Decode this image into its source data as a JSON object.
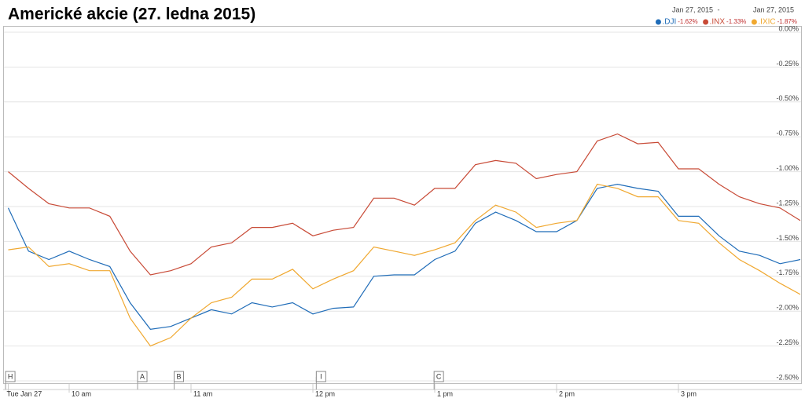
{
  "chart_data": {
    "type": "line",
    "title": "Americké akcie (27. ledna 2015)",
    "date_range": [
      "Jan 27, 2015",
      "Jan 27, 2015"
    ],
    "x": [
      570,
      580,
      590,
      600,
      610,
      620,
      630,
      640,
      650,
      660,
      670,
      680,
      690,
      700,
      710,
      720,
      730,
      740,
      750,
      760,
      770,
      780,
      790,
      800,
      810,
      820,
      830,
      840,
      850,
      860,
      870,
      880,
      890,
      900,
      910,
      920,
      930,
      940,
      950,
      960
    ],
    "xlim": [
      570,
      960
    ],
    "xticks": [
      {
        "value": 570,
        "label": "Tue Jan 27"
      },
      {
        "value": 600,
        "label": "10 am"
      },
      {
        "value": 660,
        "label": "11 am"
      },
      {
        "value": 720,
        "label": "12 pm"
      },
      {
        "value": 780,
        "label": "1 pm"
      },
      {
        "value": 840,
        "label": "2 pm"
      },
      {
        "value": 900,
        "label": "3 pm"
      }
    ],
    "ylim": [
      -2.5,
      0
    ],
    "yticks": [
      {
        "value": 0,
        "label": "0.00%"
      },
      {
        "value": -0.25,
        "label": "-0.25%"
      },
      {
        "value": -0.5,
        "label": "-0.50%"
      },
      {
        "value": -0.75,
        "label": "-0.75%"
      },
      {
        "value": -1,
        "label": "-1.00%"
      },
      {
        "value": -1.25,
        "label": "-1.25%"
      },
      {
        "value": -1.5,
        "label": "-1.50%"
      },
      {
        "value": -1.75,
        "label": "-1.75%"
      },
      {
        "value": -2,
        "label": "-2.00%"
      },
      {
        "value": -2.25,
        "label": "-2.25%"
      },
      {
        "value": -2.5,
        "label": "-2.50%"
      }
    ],
    "grid": true,
    "series": [
      {
        "name": ".DJI",
        "color": "#1f6cb8",
        "change": {
          "value": -1.62,
          "label": "-1.62%"
        },
        "values": [
          -1.26,
          -1.57,
          -1.63,
          -1.57,
          -1.63,
          -1.68,
          -1.94,
          -2.13,
          -2.11,
          -2.05,
          -1.99,
          -2.02,
          -1.94,
          -1.97,
          -1.94,
          -2.02,
          -1.98,
          -1.97,
          -1.75,
          -1.74,
          -1.74,
          -1.63,
          -1.57,
          -1.37,
          -1.29,
          -1.35,
          -1.43,
          -1.43,
          -1.35,
          -1.12,
          -1.09,
          -1.12,
          -1.14,
          -1.32,
          -1.32,
          -1.46,
          -1.57,
          -1.6,
          -1.66,
          -1.63
        ]
      },
      {
        "name": ".INX",
        "color": "#c84a36",
        "change": {
          "value": -1.33,
          "label": "-1.33%"
        },
        "values": [
          -1,
          -1.12,
          -1.23,
          -1.26,
          -1.26,
          -1.32,
          -1.57,
          -1.74,
          -1.71,
          -1.66,
          -1.54,
          -1.51,
          -1.4,
          -1.4,
          -1.37,
          -1.46,
          -1.42,
          -1.4,
          -1.19,
          -1.19,
          -1.24,
          -1.12,
          -1.12,
          -0.95,
          -0.92,
          -0.94,
          -1.05,
          -1.02,
          -1,
          -0.78,
          -0.73,
          -0.8,
          -0.79,
          -0.98,
          -0.98,
          -1.09,
          -1.18,
          -1.23,
          -1.26,
          -1.35
        ]
      },
      {
        "name": ".IXIC",
        "color": "#f0a830",
        "change": {
          "value": -1.87,
          "label": "-1.87%"
        },
        "values": [
          -1.56,
          -1.54,
          -1.68,
          -1.66,
          -1.71,
          -1.71,
          -2.05,
          -2.25,
          -2.19,
          -2.05,
          -1.94,
          -1.9,
          -1.77,
          -1.77,
          -1.7,
          -1.84,
          -1.77,
          -1.71,
          -1.54,
          -1.57,
          -1.6,
          -1.56,
          -1.51,
          -1.35,
          -1.24,
          -1.29,
          -1.4,
          -1.37,
          -1.35,
          -1.09,
          -1.12,
          -1.18,
          -1.18,
          -1.35,
          -1.37,
          -1.51,
          -1.63,
          -1.71,
          -1.8,
          -1.88
        ]
      }
    ],
    "annotations": [
      {
        "label": "H",
        "x": 571
      },
      {
        "label": "A",
        "x": 636
      },
      {
        "label": "B",
        "x": 654
      },
      {
        "label": "I",
        "x": 724
      },
      {
        "label": "C",
        "x": 782
      }
    ]
  }
}
